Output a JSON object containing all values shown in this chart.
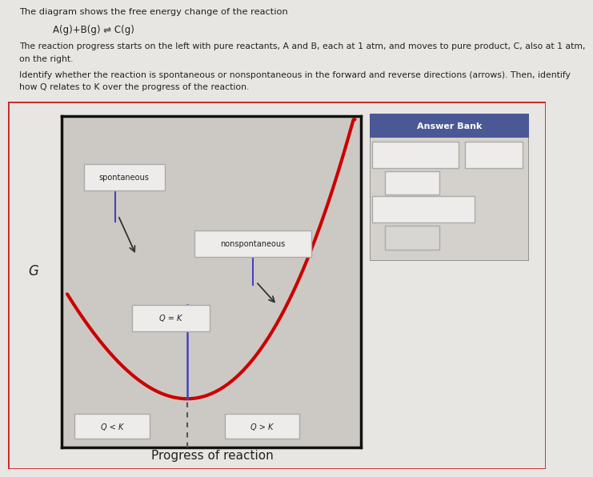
{
  "page_bg": "#e8e6e2",
  "chart_area_bg": "#d4d0cb",
  "chart_inner_bg": "#ccc9c4",
  "title_text": "The diagram shows the free energy change of the reaction",
  "equation": "A(g)+B(g) ⇌ C(g)",
  "para1": "The reaction progress starts on the left with pure reactants, A and B, each at 1 atm, and moves to pure product, C, also at 1 atm,",
  "para1b": "on the right.",
  "para2": "Identify whether the reaction is spontaneous or nonspontaneous in the forward and reverse directions (arrows). Then, identify",
  "para2b": "how Q relates to K over the progress of the reaction.",
  "xlabel": "Progress of reaction",
  "ylabel": "G",
  "curve_color": "#cc0000",
  "answer_bank_header_bg": "#4a5896",
  "answer_bank_title": "Answer Bank",
  "answer_bank_color": "#ffffff",
  "box_border": "#aaaaaa",
  "box_bg": "#eeecea",
  "arrow_color_blue": "#4444bb",
  "arrow_color_black": "#333333",
  "label_spontaneous": "spontaneous",
  "label_nonspontaneous": "nonspontaneous",
  "label_qk": "Q = K",
  "label_qltk": "Q < K",
  "label_qgtk": "Q > K",
  "outer_border_color": "#cc2222",
  "inner_border_color": "#111111"
}
